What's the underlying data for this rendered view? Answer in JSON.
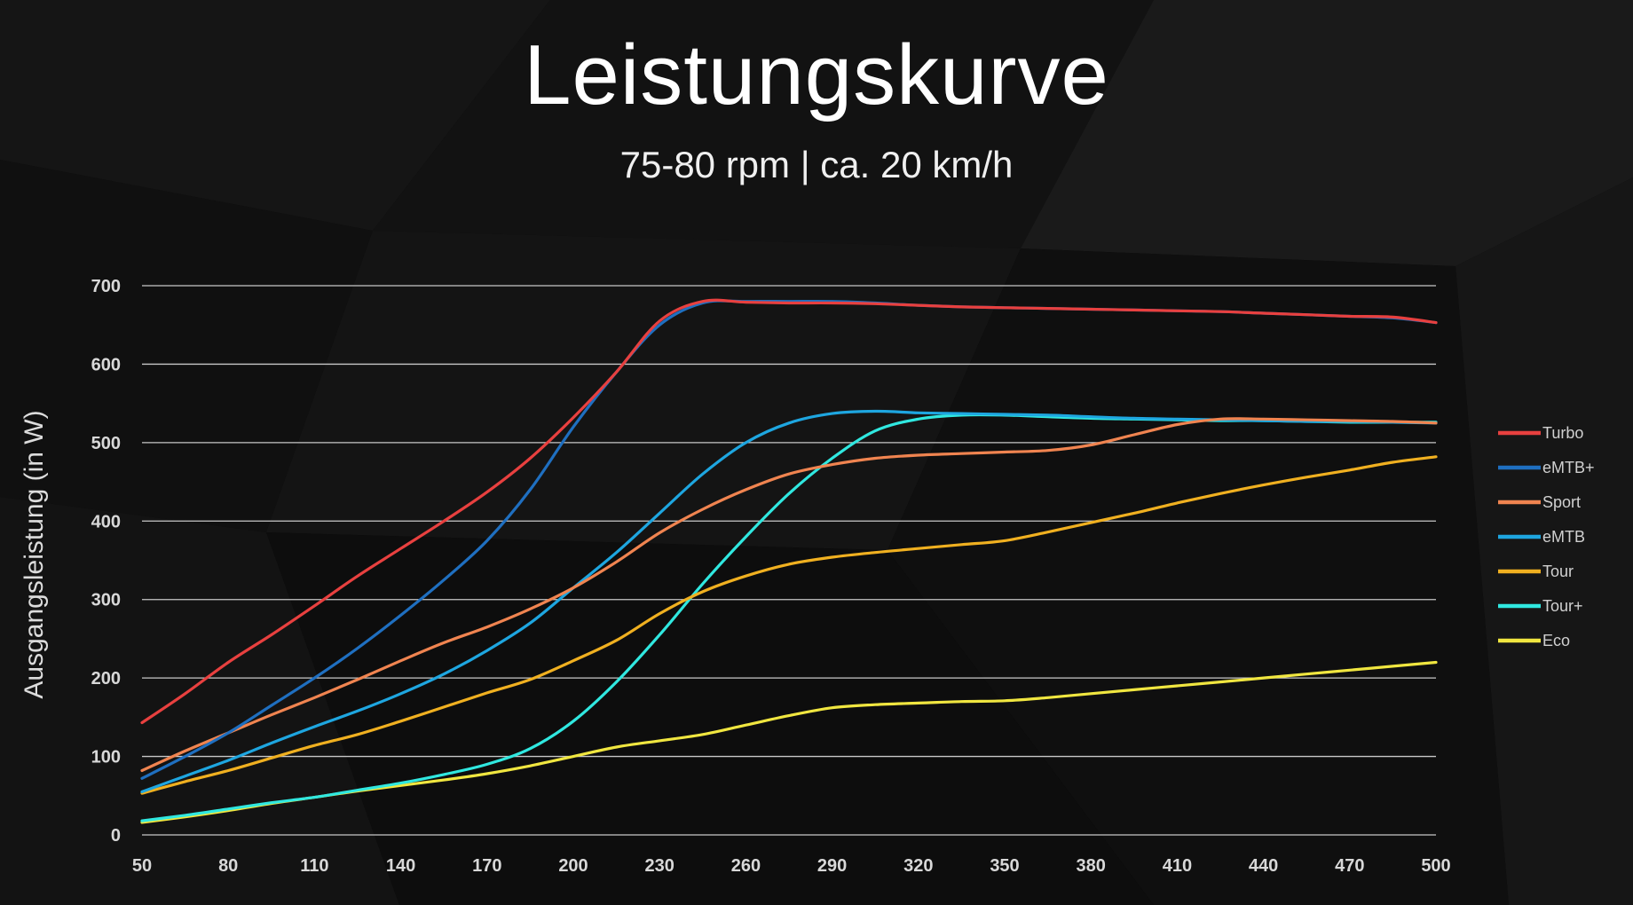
{
  "header": {
    "title": "Leistungskurve",
    "subtitle": "75-80 rpm | ca. 20 km/h"
  },
  "colors": {
    "background": "#0b0b0b",
    "grid": "#c8c8c8"
  },
  "chart_data": {
    "type": "line",
    "title": "Leistungskurve",
    "subtitle": "75-80 rpm | ca. 20 km/h",
    "xlabel": "",
    "ylabel": "Ausgangsleistung (in W)",
    "xlim": [
      50,
      500
    ],
    "ylim": [
      0,
      700
    ],
    "x_ticks": [
      50,
      80,
      110,
      140,
      170,
      200,
      230,
      260,
      290,
      320,
      350,
      380,
      410,
      440,
      470,
      500
    ],
    "y_ticks": [
      0,
      100,
      200,
      300,
      400,
      500,
      600,
      700
    ],
    "grid": "horizontal",
    "legend_position": "right",
    "x": [
      50,
      65,
      80,
      95,
      110,
      125,
      140,
      155,
      170,
      185,
      200,
      215,
      230,
      245,
      260,
      275,
      290,
      305,
      320,
      335,
      350,
      365,
      380,
      395,
      410,
      425,
      440,
      455,
      470,
      485,
      500
    ],
    "series": [
      {
        "name": "Turbo",
        "color": "#e8403f",
        "values": [
          143,
          180,
          220,
          255,
          292,
          330,
          365,
          400,
          437,
          480,
          532,
          590,
          655,
          680,
          679,
          678,
          678,
          677,
          675,
          673,
          672,
          671,
          670,
          669,
          668,
          667,
          665,
          663,
          661,
          660,
          653
        ]
      },
      {
        "name": "eMTB+",
        "color": "#1f6fc0",
        "values": [
          72,
          100,
          130,
          165,
          200,
          238,
          280,
          325,
          375,
          440,
          520,
          590,
          650,
          678,
          680,
          680,
          680,
          678,
          675,
          673,
          672,
          671,
          670,
          669,
          668,
          667,
          665,
          663,
          661,
          659,
          653
        ]
      },
      {
        "name": "Sport",
        "color": "#f08450",
        "values": [
          82,
          107,
          130,
          153,
          175,
          198,
          222,
          245,
          265,
          288,
          315,
          348,
          385,
          415,
          440,
          460,
          472,
          480,
          484,
          486,
          488,
          490,
          497,
          510,
          523,
          530,
          530,
          529,
          528,
          527,
          525
        ]
      },
      {
        "name": "eMTB",
        "color": "#1ea6e0",
        "values": [
          55,
          75,
          95,
          117,
          138,
          158,
          180,
          205,
          235,
          270,
          315,
          360,
          410,
          460,
          500,
          525,
          537,
          540,
          538,
          537,
          536,
          535,
          533,
          531,
          530,
          529,
          528,
          527,
          527,
          526,
          525
        ]
      },
      {
        "name": "Tour",
        "color": "#f0b020",
        "values": [
          53,
          68,
          82,
          98,
          114,
          128,
          145,
          163,
          181,
          198,
          222,
          248,
          282,
          310,
          330,
          345,
          354,
          360,
          365,
          370,
          375,
          386,
          398,
          410,
          423,
          435,
          446,
          456,
          465,
          475,
          482
        ]
      },
      {
        "name": "Tour+",
        "color": "#30e8e0",
        "values": [
          18,
          25,
          33,
          41,
          48,
          57,
          66,
          77,
          90,
          110,
          145,
          195,
          255,
          320,
          380,
          435,
          480,
          515,
          530,
          535,
          535,
          533,
          531,
          530,
          529,
          528,
          528,
          527,
          526,
          526,
          526
        ]
      },
      {
        "name": "Eco",
        "color": "#f0e640",
        "values": [
          16,
          23,
          31,
          40,
          48,
          56,
          63,
          70,
          78,
          88,
          100,
          112,
          120,
          128,
          140,
          152,
          162,
          166,
          168,
          170,
          171,
          175,
          180,
          185,
          190,
          195,
          200,
          205,
          210,
          215,
          220
        ]
      }
    ]
  }
}
